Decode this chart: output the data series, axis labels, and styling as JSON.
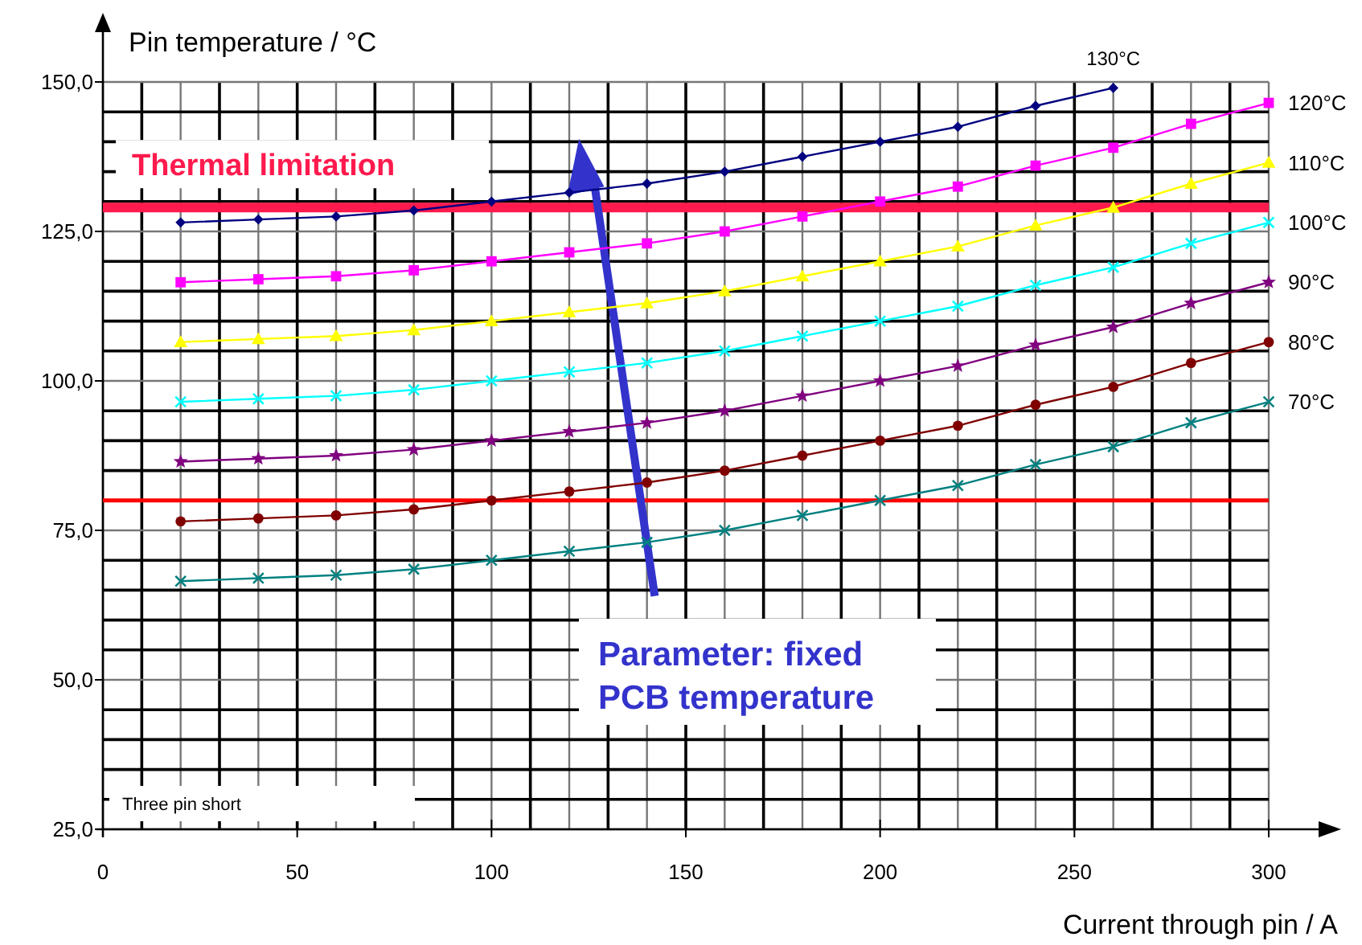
{
  "chart_data": {
    "type": "line",
    "xlabel": "Current through pin / A",
    "ylabel": "Pin temperature / °C",
    "x": [
      20,
      40,
      60,
      80,
      100,
      120,
      140,
      160,
      180,
      200,
      220,
      240,
      260,
      280,
      300
    ],
    "xlim": [
      0,
      300
    ],
    "xticks": [
      0,
      50,
      100,
      150,
      200,
      250,
      300
    ],
    "ylim": [
      25,
      150
    ],
    "yticks": [
      {
        "value": 25,
        "label": "25,0"
      },
      {
        "value": 50,
        "label": "50,0"
      },
      {
        "value": 75,
        "label": "75,0"
      },
      {
        "value": 100,
        "label": "100,0"
      },
      {
        "value": 125,
        "label": "125,0"
      },
      {
        "value": 150,
        "label": "150,0"
      }
    ],
    "grid": true,
    "series": [
      {
        "name": "130°C",
        "color": "#000080",
        "marker": "diamond",
        "values": [
          126.5,
          127,
          127.5,
          128.5,
          130,
          131.5,
          133,
          135,
          137.5,
          140,
          142.5,
          146,
          149,
          null,
          null
        ]
      },
      {
        "name": "120°C",
        "color": "#ff00ff",
        "marker": "square",
        "values": [
          116.5,
          117,
          117.5,
          118.5,
          120,
          121.5,
          123,
          125,
          127.5,
          130,
          132.5,
          136,
          139,
          143,
          146.5
        ]
      },
      {
        "name": "110°C",
        "color": "#ffff00",
        "marker": "triangle",
        "values": [
          106.5,
          107,
          107.5,
          108.5,
          110,
          111.5,
          113,
          115,
          117.5,
          120,
          122.5,
          126,
          129,
          133,
          136.5
        ]
      },
      {
        "name": "100°C",
        "color": "#00ffff",
        "marker": "cross",
        "values": [
          96.5,
          97,
          97.5,
          98.5,
          100,
          101.5,
          103,
          105,
          107.5,
          110,
          112.5,
          116,
          119,
          123,
          126.5
        ]
      },
      {
        "name": "90°C",
        "color": "#800080",
        "marker": "star",
        "values": [
          86.5,
          87,
          87.5,
          88.5,
          90,
          91.5,
          93,
          95,
          97.5,
          100,
          102.5,
          106,
          109,
          113,
          116.5
        ]
      },
      {
        "name": "80°C",
        "color": "#800000",
        "marker": "circle",
        "values": [
          76.5,
          77,
          77.5,
          78.5,
          80,
          81.5,
          83,
          85,
          87.5,
          90,
          92.5,
          96,
          99,
          103,
          106.5
        ]
      },
      {
        "name": "70°C",
        "color": "#008080",
        "marker": "cross",
        "values": [
          66.5,
          67,
          67.5,
          68.5,
          70,
          71.5,
          73,
          75,
          77.5,
          80,
          82.5,
          86,
          89,
          93,
          96.5
        ]
      }
    ],
    "ref_lines": [
      {
        "axis": "y",
        "value": 129,
        "label": "Thermal limitation",
        "color": "#ff1a4d"
      },
      {
        "axis": "y",
        "value": 80,
        "color": "#ff0000"
      }
    ],
    "annotations": [
      "Parameter: fixed PCB temperature",
      "Three pin short"
    ]
  }
}
